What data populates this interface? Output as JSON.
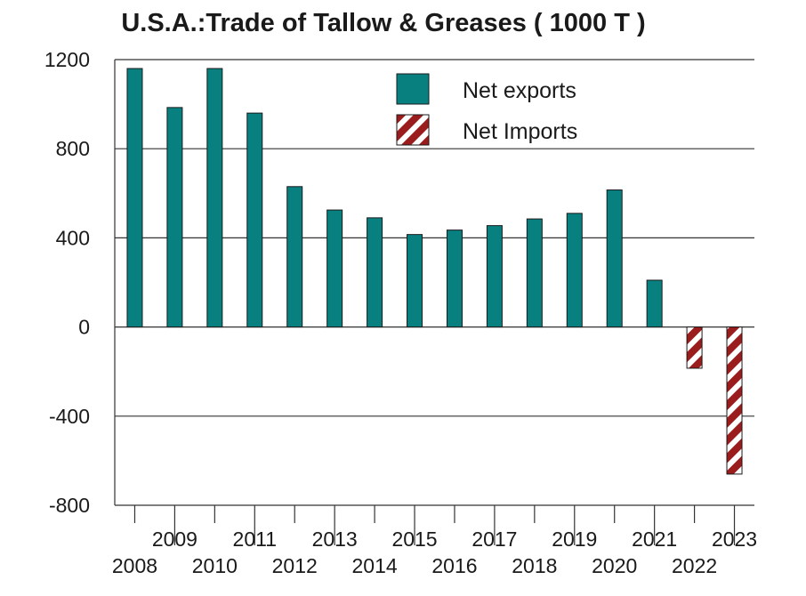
{
  "chart_data": {
    "type": "bar",
    "title": "U.S.A.:Trade of Tallow & Greases ( 1000 T )",
    "categories": [
      "2008",
      "2009",
      "2010",
      "2011",
      "2012",
      "2013",
      "2014",
      "2015",
      "2016",
      "2017",
      "2018",
      "2019",
      "2020",
      "2021",
      "2022",
      "2023"
    ],
    "series": [
      {
        "name": "Net exports",
        "color": "#088080",
        "values": [
          1160,
          985,
          1160,
          960,
          630,
          525,
          490,
          415,
          435,
          455,
          485,
          510,
          615,
          210,
          null,
          null
        ]
      },
      {
        "name": "Net Imports",
        "color": "#9b1c1c",
        "pattern": "diagonal-hatch",
        "values": [
          null,
          null,
          null,
          null,
          null,
          null,
          null,
          null,
          null,
          null,
          null,
          null,
          null,
          null,
          -185,
          -660
        ]
      }
    ],
    "ylim": [
      -800,
      1200
    ],
    "yticks": [
      1200,
      800,
      400,
      0,
      -400,
      -800
    ],
    "grid": true,
    "legend_position": "top-center",
    "xlabel": "",
    "ylabel": ""
  }
}
